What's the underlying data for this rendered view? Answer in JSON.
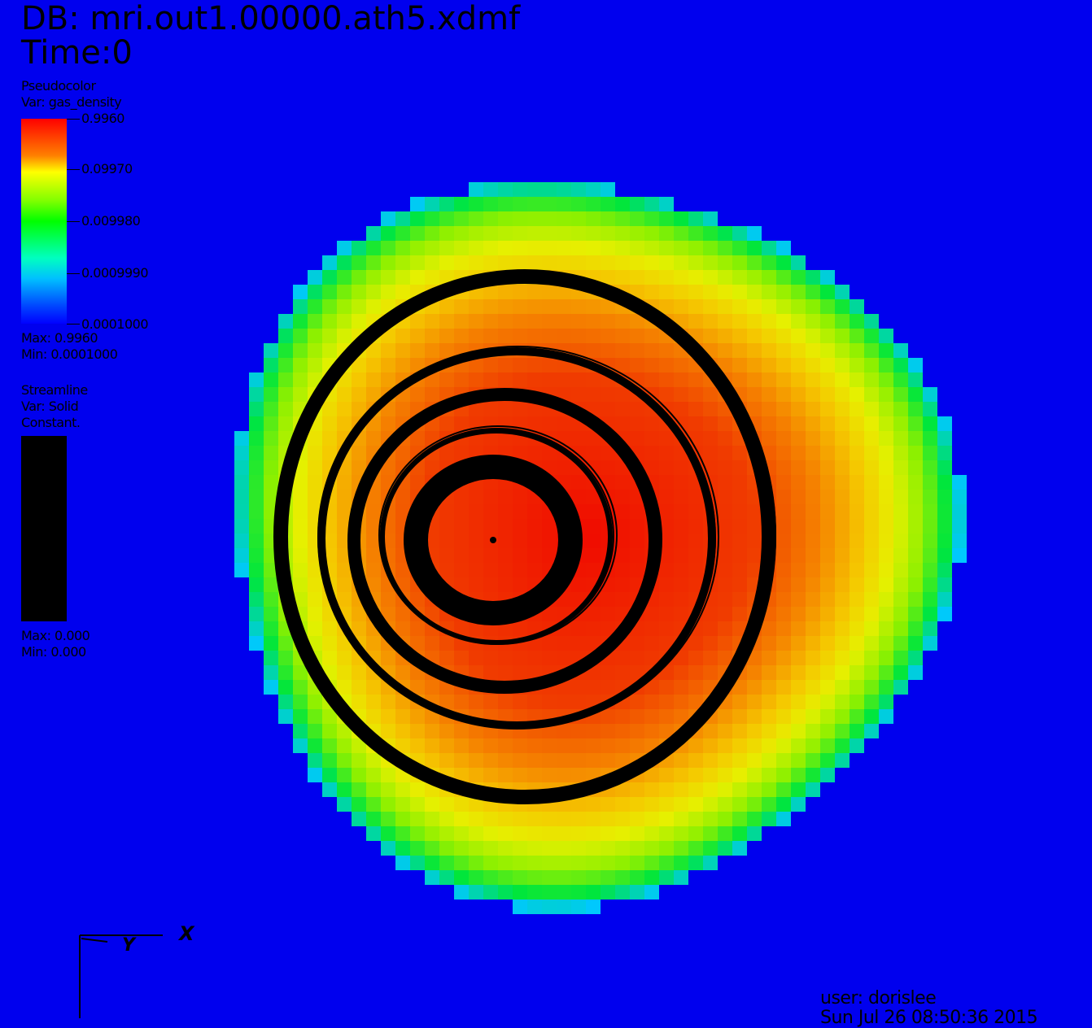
{
  "header": {
    "db_label": "DB: mri.out1.00000.ath5.xdmf",
    "time_label": "Time:0"
  },
  "legend_pseudocolor": {
    "plot_type": "Pseudocolor",
    "var_label": "Var: gas_density",
    "ticks": [
      "0.9960",
      "0.09970",
      "0.009980",
      "0.0009990",
      "0.0001000"
    ],
    "max_label": "Max:  0.9960",
    "min_label": "Min:  0.0001000",
    "colormap": [
      "#ff0000",
      "#ff8000",
      "#ffff00",
      "#00ff00",
      "#00ffc0",
      "#0000ff"
    ]
  },
  "legend_streamline": {
    "plot_type": "Streamline",
    "var_label": "Var: Solid",
    "mode_label": "Constant.",
    "color": "#000000",
    "max_label": "Max:  0.000",
    "min_label": "Min:  0.000"
  },
  "axes": {
    "x_label": "X",
    "y_label": "Y"
  },
  "footer": {
    "user_label": "user: dorislee",
    "date_label": "Sun Jul 26 08:50:36 2015"
  },
  "colors": {
    "background": "#0000ee"
  }
}
